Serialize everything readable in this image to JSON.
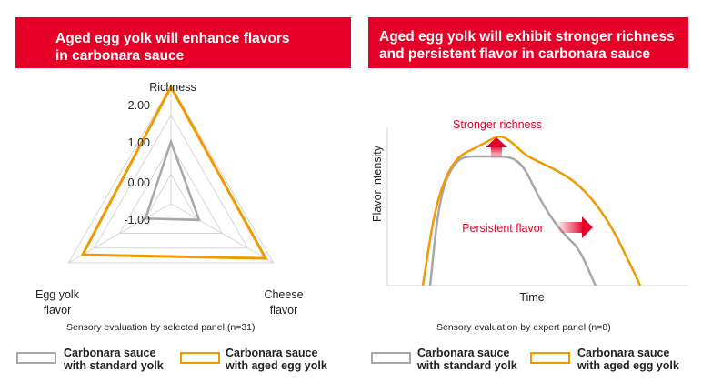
{
  "colors": {
    "accent_red": "#e60028",
    "standard": "#a7a7a7",
    "aged": "#f09a00",
    "grid": "#d6d6d6"
  },
  "left_title": [
    "Aged egg yolk will enhance flavors",
    "in carbonara sauce"
  ],
  "right_title": [
    "Aged egg yolk will exhibit stronger richness",
    "and persistent flavor in carbonara sauce"
  ],
  "left_caption": "Sensory evaluation by selected panel (n=31)",
  "right_caption": "Sensory evaluation by expert panel (n=8)",
  "legend_left": {
    "standard": [
      "Carbonara sauce",
      "with standard yolk"
    ],
    "aged": [
      "Carbonara sauce",
      "with aged egg yolk"
    ]
  },
  "legend_right": {
    "standard": [
      "Carbonara sauce",
      "with standard yolk"
    ],
    "aged": [
      "Carbonara sauce",
      "with aged egg yolk"
    ]
  },
  "chart_data": [
    {
      "type": "radar",
      "axes": [
        "Richness",
        "Cheese flavor",
        "Egg yolk flavor"
      ],
      "axis_labels": {
        "richness": "Richness",
        "cheese": [
          "Cheese",
          "flavor"
        ],
        "egg": [
          "Egg yolk",
          "flavor"
        ]
      },
      "tick_labels": [
        "2.00",
        "1.00",
        "0.00",
        "-1.00"
      ],
      "range": [
        -2.0,
        2.0
      ],
      "grid_rings": [
        -2.0,
        -1.0,
        0.0,
        1.0,
        2.0
      ],
      "series": [
        {
          "name": "Carbonara sauce with standard yolk",
          "values": [
            0.1,
            -0.9,
            -1.0
          ]
        },
        {
          "name": "Carbonara sauce with aged egg yolk",
          "values": [
            1.95,
            1.7,
            1.45
          ]
        }
      ]
    },
    {
      "type": "line",
      "xlabel": "Time",
      "ylabel": "Flavor intensity",
      "annotations": [
        "Stronger richness",
        "Persistent flavor"
      ],
      "series": [
        {
          "name": "Carbonara sauce with standard yolk",
          "values": []
        },
        {
          "name": "Carbonara sauce with aged egg yolk",
          "values": []
        }
      ]
    }
  ]
}
